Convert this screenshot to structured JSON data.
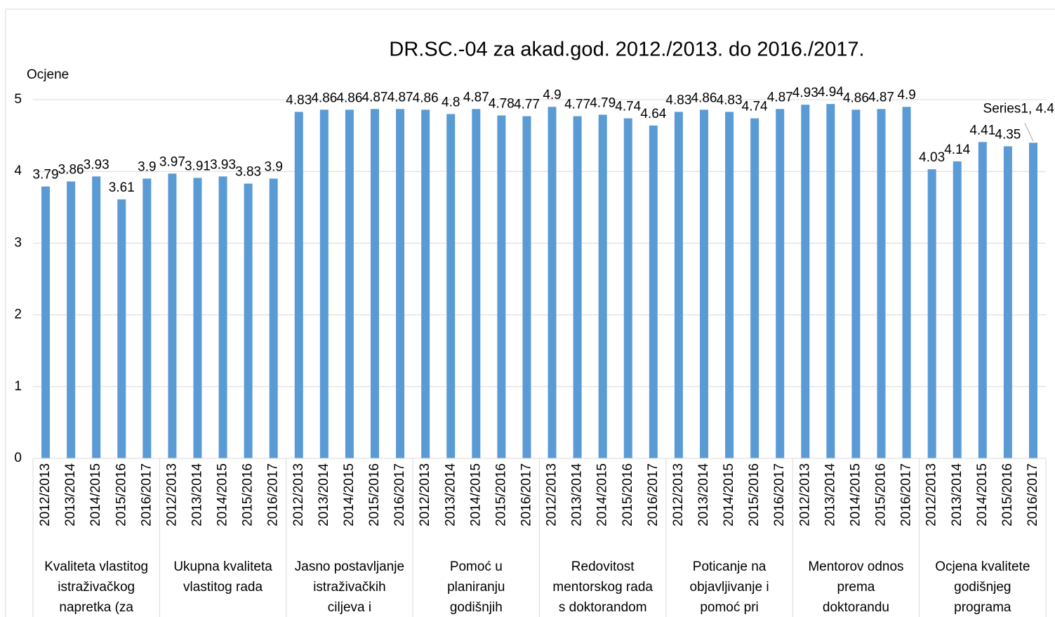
{
  "chart_data": {
    "type": "bar",
    "title": "DR.SC.-04 za akad.god. 2012./2013. do 2016./2017.",
    "y_axis_label": "Ocjene",
    "groups": [
      {
        "lines": [
          "Kvaliteta vlastitog",
          "istraživačkog",
          "napretka  (za"
        ],
        "categories": [
          "2012/2013",
          "2013/2014",
          "2014/2015",
          "2015/2016",
          "2016/2017"
        ]
      },
      {
        "lines": [
          "Ukupna kvaliteta",
          "vlastitog rada"
        ],
        "categories": [
          "2012/2013",
          "2013/2014",
          "2014/2015",
          "2015/2016",
          "2016/2017"
        ]
      },
      {
        "lines": [
          "Jasno postavljanje",
          "istraživačkih",
          "ciljeva i"
        ],
        "categories": [
          "2012/2013",
          "2013/2014",
          "2014/2015",
          "2015/2016",
          "2016/2017"
        ]
      },
      {
        "lines": [
          "Pomoć u",
          "planiranju",
          "godišnjih"
        ],
        "categories": [
          "2012/2013",
          "2013/2014",
          "2014/2015",
          "2015/2016",
          "2016/2017"
        ]
      },
      {
        "lines": [
          "Redovitost",
          "mentorskog rada",
          "s doktorandom"
        ],
        "categories": [
          "2012/2013",
          "2013/2014",
          "2014/2015",
          "2015/2016",
          "2016/2017"
        ]
      },
      {
        "lines": [
          "Poticanje na",
          "objavljivanje i",
          "pomoć pri"
        ],
        "categories": [
          "2012/2013",
          "2013/2014",
          "2014/2015",
          "2015/2016",
          "2016/2017"
        ]
      },
      {
        "lines": [
          "Mentorov odnos",
          "prema",
          "doktorandu"
        ],
        "categories": [
          "2012/2013",
          "2013/2014",
          "2014/2015",
          "2015/2016",
          "2016/2017"
        ]
      },
      {
        "lines": [
          "Ocjena kvalitete",
          "godišnjeg",
          "programa"
        ],
        "categories": [
          "2012/2013",
          "2013/2014",
          "2014/2015",
          "2015/2016",
          "2016/2017"
        ]
      }
    ],
    "series": [
      {
        "name": "Series1",
        "color": "#5b9bd5",
        "values": [
          3.79,
          3.86,
          3.93,
          3.61,
          3.9,
          3.97,
          3.91,
          3.93,
          3.83,
          3.9,
          4.83,
          4.86,
          4.86,
          4.87,
          4.87,
          4.86,
          4.8,
          4.87,
          4.78,
          4.77,
          4.9,
          4.77,
          4.79,
          4.74,
          4.64,
          4.83,
          4.86,
          4.83,
          4.74,
          4.87,
          4.93,
          4.94,
          4.86,
          4.87,
          4.9,
          4.03,
          4.14,
          4.41,
          4.35,
          4.4
        ],
        "value_labels": [
          "3.79",
          "3.86",
          "3.93",
          "3.61",
          "3.9",
          "3.97",
          "3.91",
          "3.93",
          "3.83",
          "3.9",
          "4.83",
          "4.86",
          "4.86",
          "4.87",
          "4.87",
          "4.86",
          "4.8",
          "4.87",
          "4.78",
          "4.77",
          "4.9",
          "4.77",
          "4.79",
          "4.74",
          "4.64",
          "4.83",
          "4.86",
          "4.83",
          "4.74",
          "4.87",
          "4.93",
          "4.94",
          "4.86",
          "4.87",
          "4.9",
          "4.03",
          "4.14",
          "4.41",
          "4.35",
          "Series1, 4.4"
        ]
      }
    ],
    "ylim": [
      0,
      5
    ],
    "yticks": [
      0,
      1,
      2,
      3,
      4,
      5
    ],
    "grid": true
  }
}
